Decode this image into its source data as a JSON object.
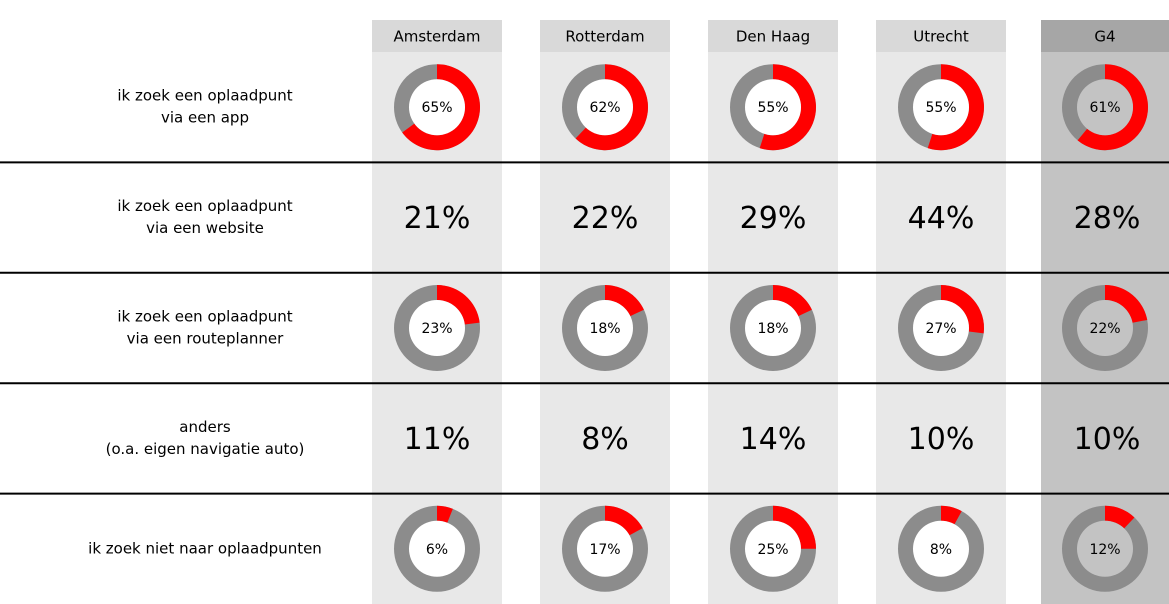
{
  "columns": [
    "Amsterdam",
    "Rotterdam",
    "Den Haag",
    "Utrecht",
    "G4"
  ],
  "rows": [
    {
      "label": [
        "ik zoek een oplaadpunt",
        "via een app"
      ],
      "type": "donut",
      "values": [
        65,
        62,
        55,
        55,
        61
      ],
      "value_labels": [
        "65%",
        "62%",
        "55%",
        "55%",
        "61%"
      ]
    },
    {
      "label": [
        "ik zoek een oplaadpunt",
        "via een website"
      ],
      "type": "text",
      "values": [
        21,
        22,
        29,
        44,
        28
      ],
      "value_labels": [
        "21%",
        "22%",
        "29%",
        "44%",
        "28%"
      ]
    },
    {
      "label": [
        "ik zoek een oplaadpunt",
        "via een routeplanner"
      ],
      "type": "donut",
      "values": [
        23,
        18,
        18,
        27,
        22
      ],
      "value_labels": [
        "23%",
        "18%",
        "18%",
        "27%",
        "22%"
      ]
    },
    {
      "label": [
        "anders",
        "(o.a. eigen navigatie auto)"
      ],
      "type": "text",
      "values": [
        11,
        8,
        14,
        10,
        10
      ],
      "value_labels": [
        "11%",
        "8%",
        "14%",
        "10%",
        "10%"
      ]
    },
    {
      "label": [
        "ik zoek niet naar oplaadpunten"
      ],
      "type": "donut",
      "values": [
        6,
        17,
        25,
        8,
        12
      ],
      "value_labels": [
        "6%",
        "17%",
        "25%",
        "8%",
        "12%"
      ]
    }
  ],
  "colors": {
    "value": "#ff0000",
    "rest": "#8c8c8c"
  }
}
